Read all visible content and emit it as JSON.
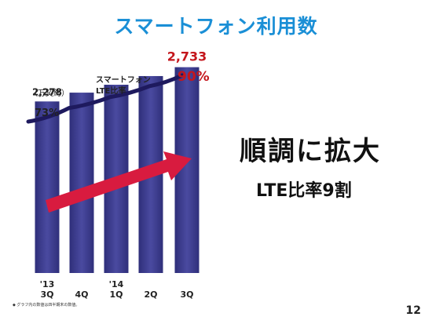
{
  "title": "スマートフォン利用数",
  "chart_data": {
    "type": "bar",
    "categories": [
      "'13 3Q",
      "4Q",
      "'14 1Q",
      "2Q",
      "3Q"
    ],
    "category_lines": [
      [
        "'13",
        "3Q"
      ],
      [
        "",
        "4Q"
      ],
      [
        "'14",
        "1Q"
      ],
      [
        "",
        "2Q"
      ],
      [
        "",
        "3Q"
      ]
    ],
    "values": [
      2278,
      2395,
      2500,
      2615,
      2733
    ],
    "bar_labels": [
      "2,278",
      "",
      "",
      "",
      "2,733"
    ],
    "unit": "（万契約）",
    "ylim": [
      0,
      3000
    ],
    "line_series": {
      "name_lines": [
        "スマートフォン",
        "LTE比率"
      ],
      "values": [
        73,
        78,
        82,
        86,
        90
      ],
      "start_label": "73%",
      "end_label": "90%"
    },
    "colors": {
      "bar": "#3f3f8f",
      "line": "#1e1a5e",
      "arrow": "#d81b3f",
      "highlight": "#c4161c"
    }
  },
  "headline": "順調に拡大",
  "subheadline": "LTE比率9割",
  "footnote": "◆ グラフ内の数値は四半期末の数値。",
  "page_number": "12"
}
